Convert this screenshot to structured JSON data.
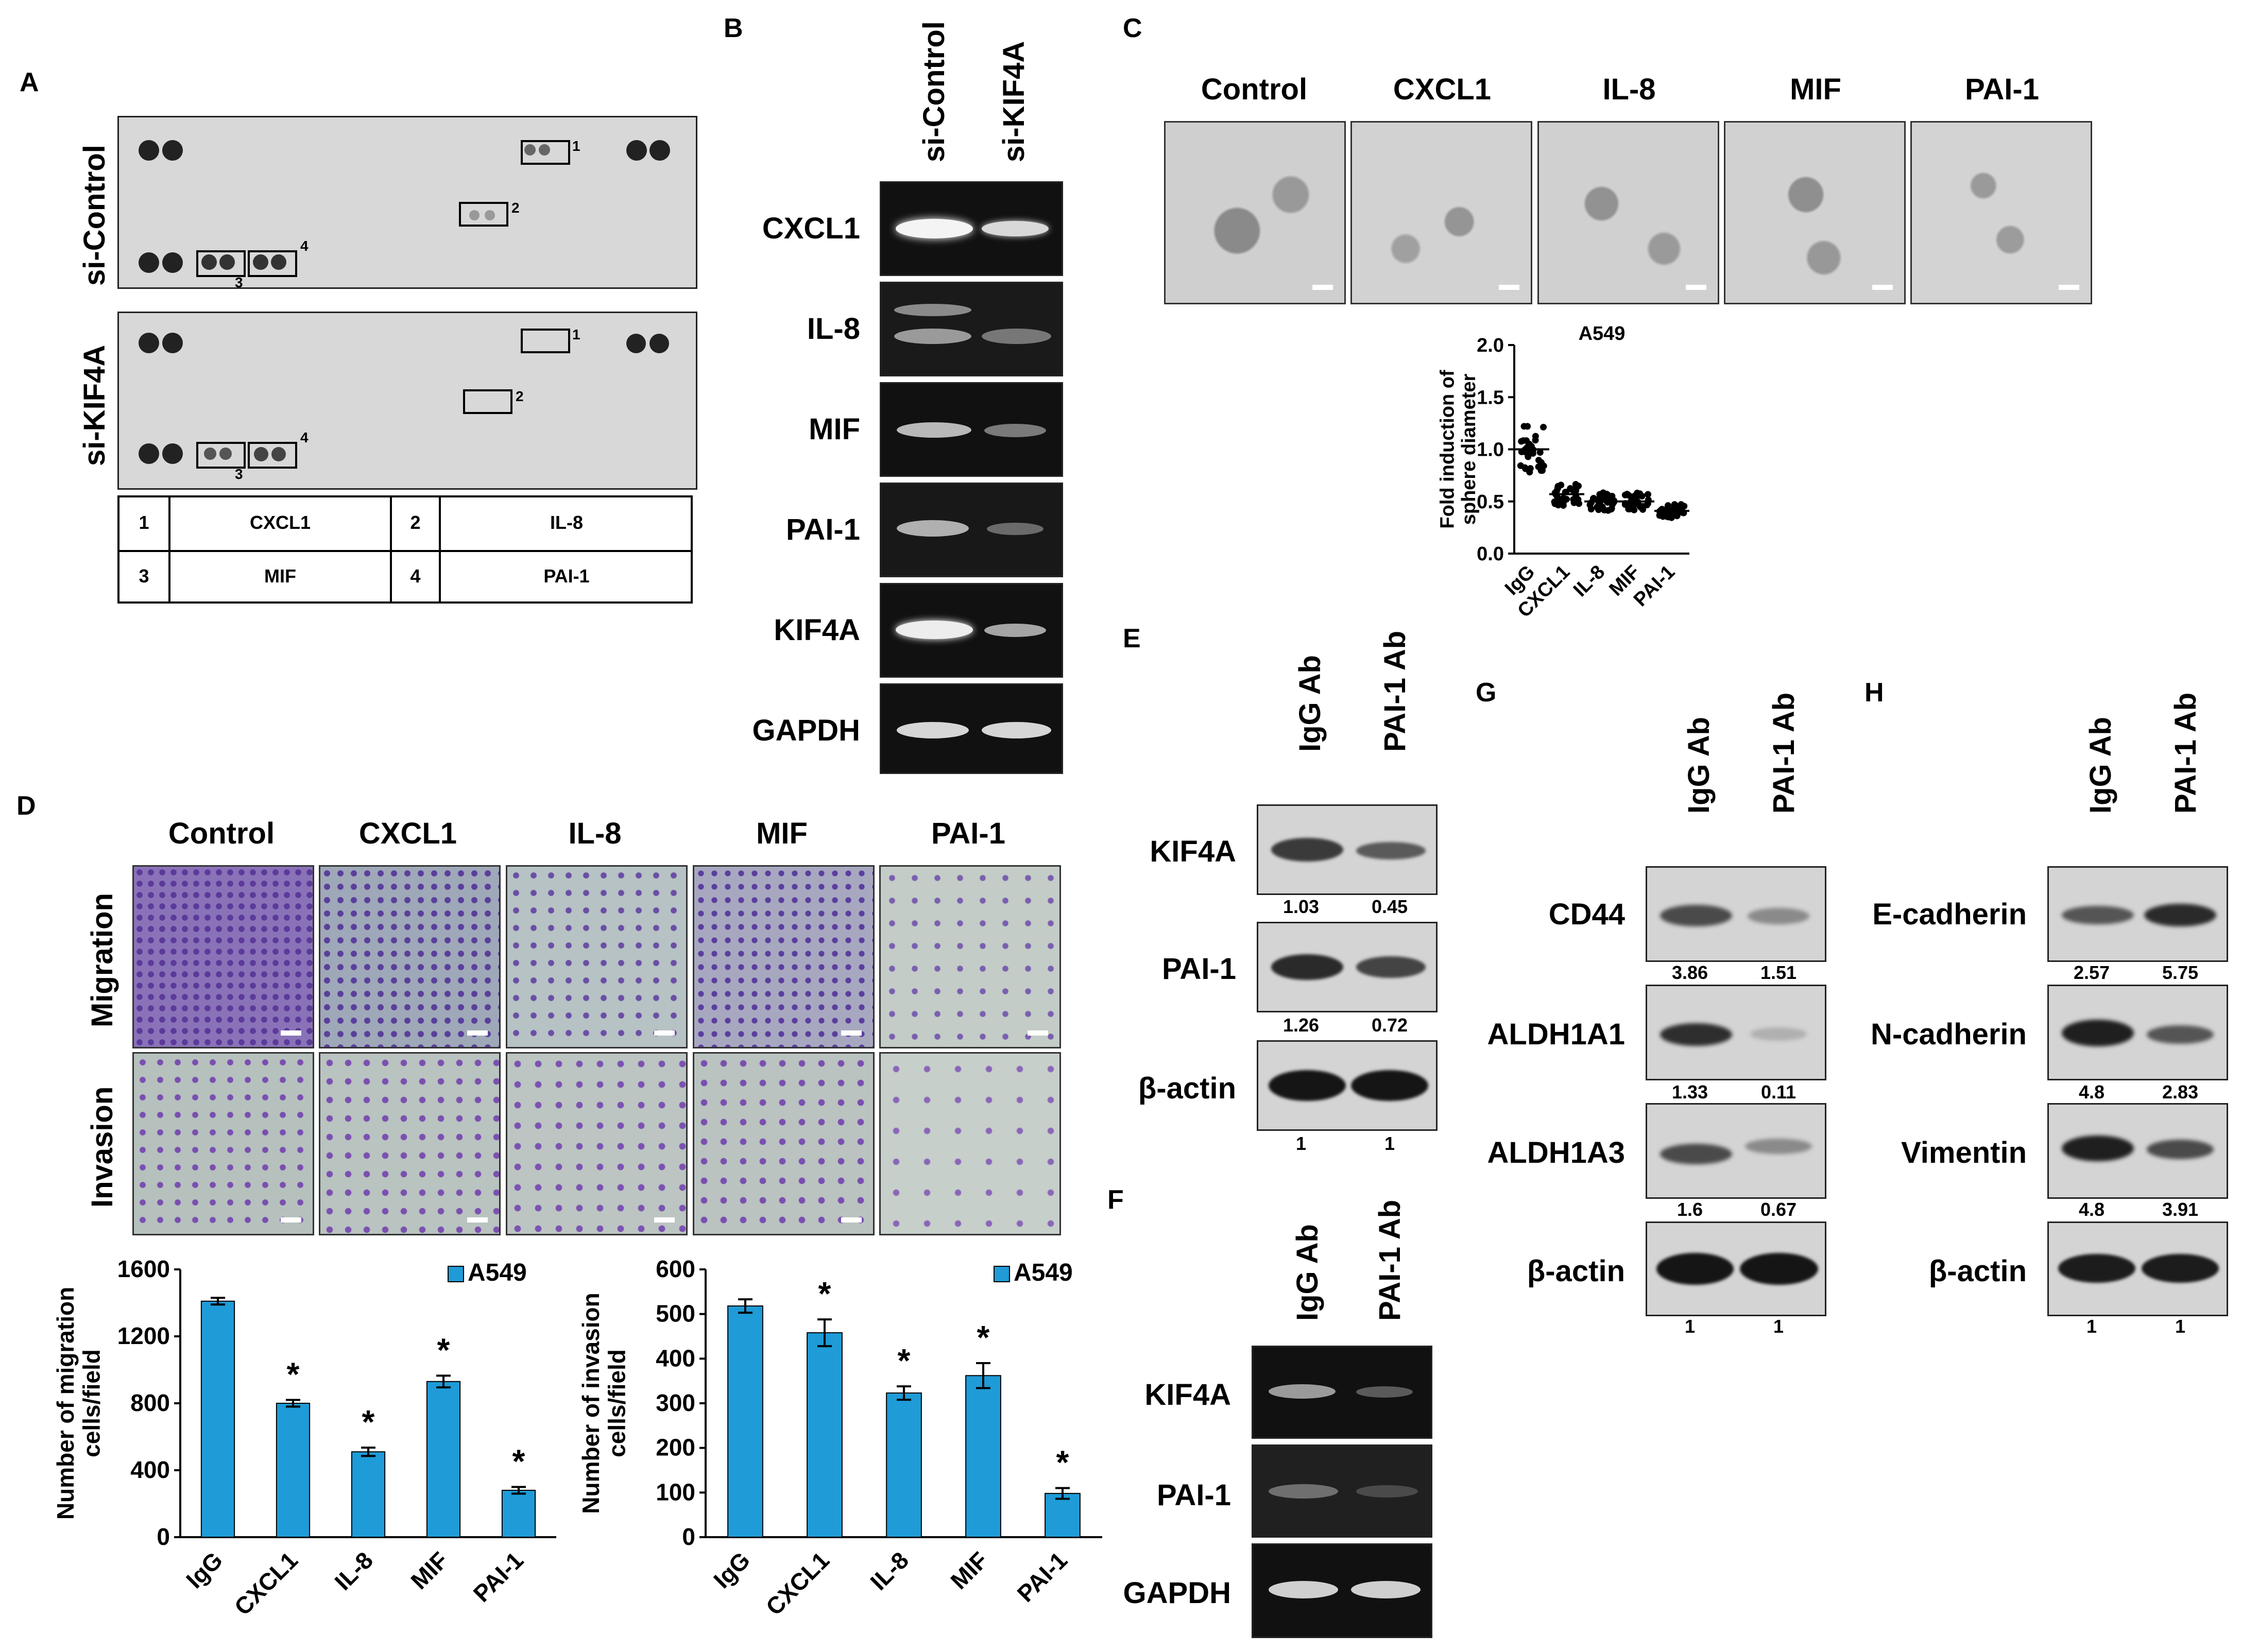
{
  "panels": {
    "A": "A",
    "B": "B",
    "C": "C",
    "D": "D",
    "E": "E",
    "F": "F",
    "G": "G",
    "H": "H"
  },
  "panelA": {
    "rows": [
      "si-Control",
      "si-KIF4A"
    ],
    "box_numbers": [
      "1",
      "2",
      "3",
      "4"
    ],
    "legend": [
      {
        "num": "1",
        "name": "CXCL1"
      },
      {
        "num": "2",
        "name": "IL-8"
      },
      {
        "num": "3",
        "name": "MIF"
      },
      {
        "num": "4",
        "name": "PAI-1"
      }
    ]
  },
  "panelB": {
    "columns": [
      "si-Control",
      "si-KIF4A"
    ],
    "rows": [
      "CXCL1",
      "IL-8",
      "MIF",
      "PAI-1",
      "KIF4A",
      "GAPDH"
    ]
  },
  "panelC": {
    "images": [
      "Control",
      "CXCL1",
      "IL-8",
      "MIF",
      "PAI-1"
    ]
  },
  "panelD": {
    "columns": [
      "Control",
      "CXCL1",
      "IL-8",
      "MIF",
      "PAI-1"
    ],
    "rows": [
      "Migration",
      "Invasion"
    ]
  },
  "panelE": {
    "columns": [
      "IgG Ab",
      "PAI-1 Ab"
    ],
    "rows": [
      {
        "label": "KIF4A",
        "values": [
          "1.03",
          "0.45"
        ]
      },
      {
        "label": "PAI-1",
        "values": [
          "1.26",
          "0.72"
        ]
      },
      {
        "label": "β-actin",
        "values": [
          "1",
          "1"
        ]
      }
    ]
  },
  "panelF": {
    "columns": [
      "IgG Ab",
      "PAI-1 Ab"
    ],
    "rows": [
      "KIF4A",
      "PAI-1",
      "GAPDH"
    ]
  },
  "panelG": {
    "columns": [
      "IgG Ab",
      "PAI-1 Ab"
    ],
    "rows": [
      {
        "label": "CD44",
        "values": [
          "3.86",
          "1.51"
        ]
      },
      {
        "label": "ALDH1A1",
        "values": [
          "1.33",
          "0.11"
        ]
      },
      {
        "label": "ALDH1A3",
        "values": [
          "1.6",
          "0.67"
        ]
      },
      {
        "label": "β-actin",
        "values": [
          "1",
          "1"
        ]
      }
    ]
  },
  "panelH": {
    "columns": [
      "IgG Ab",
      "PAI-1 Ab"
    ],
    "rows": [
      {
        "label": "E-cadherin",
        "values": [
          "2.57",
          "5.75"
        ]
      },
      {
        "label": "N-cadherin",
        "values": [
          "4.8",
          "2.83"
        ]
      },
      {
        "label": "Vimentin",
        "values": [
          "4.8",
          "3.91"
        ]
      },
      {
        "label": "β-actin",
        "values": [
          "1",
          "1"
        ]
      }
    ]
  },
  "chart_data": [
    {
      "type": "scatter",
      "title": "A549",
      "ylabel": "Fold induction of sphere diameter",
      "categories": [
        "IgG",
        "CXCL1",
        "IL-8",
        "MIF",
        "PAI-1"
      ],
      "means": [
        1.0,
        0.57,
        0.5,
        0.5,
        0.41
      ],
      "ylim": [
        0.0,
        2.0
      ],
      "yticks": [
        "0.0",
        "0.5",
        "1.0",
        "1.5",
        "2.0"
      ]
    },
    {
      "type": "bar",
      "legend": "A549",
      "ylabel": "Number of migration cells/field",
      "categories": [
        "IgG",
        "CXCL1",
        "IL-8",
        "MIF",
        "PAI-1"
      ],
      "values": [
        1410,
        800,
        510,
        930,
        280
      ],
      "errors": [
        20,
        20,
        25,
        35,
        20
      ],
      "significant": [
        false,
        true,
        true,
        true,
        true
      ],
      "ylim": [
        0,
        1600
      ],
      "yticks": [
        "0",
        "400",
        "800",
        "1200",
        "1600"
      ],
      "color": "#1f9bd7"
    },
    {
      "type": "bar",
      "legend": "A549",
      "ylabel": "Number of invasion cells/field",
      "categories": [
        "IgG",
        "CXCL1",
        "IL-8",
        "MIF",
        "PAI-1"
      ],
      "values": [
        518,
        458,
        323,
        362,
        98
      ],
      "errors": [
        15,
        30,
        15,
        28,
        12
      ],
      "significant": [
        false,
        true,
        true,
        true,
        true
      ],
      "ylim": [
        0,
        600
      ],
      "yticks": [
        "0",
        "100",
        "200",
        "300",
        "400",
        "500",
        "600"
      ],
      "color": "#1f9bd7"
    }
  ]
}
